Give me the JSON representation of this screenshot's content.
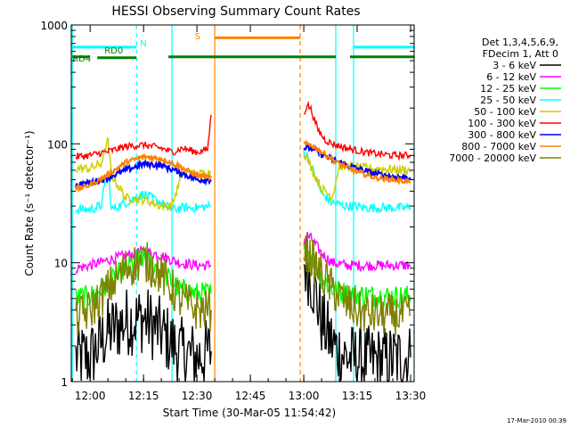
{
  "chart_data": {
    "type": "line",
    "title": "HESSI Observing Summary Count Rates",
    "xlabel": "Start Time (30-Mar-05 11:54:42)",
    "ylabel": "Count Rate (s⁻¹ detector⁻¹)",
    "y_scale": "log",
    "ylim": [
      1,
      1000
    ],
    "xlim": [
      "11:54:42",
      "13:31:00"
    ],
    "x_ticks": [
      "12:00",
      "12:15",
      "12:30",
      "12:45",
      "13:00",
      "13:15",
      "13:30"
    ],
    "y_ticks": [
      "1",
      "10",
      "100",
      "1000"
    ],
    "timestamp": "17-Mar-2010 00:39",
    "legend_header": [
      "Det 1,3,4,5,6,9,",
      "FDecim 1, Att 0"
    ],
    "legend_position": "right",
    "grid": false,
    "data_gaps": [
      [
        "12:35",
        "12:59"
      ]
    ],
    "annotations": [
      {
        "label": "N",
        "color": "#00ffff",
        "segments": [
          [
            "11:55",
            "12:13"
          ],
          [
            "13:14",
            "13:31"
          ]
        ],
        "value": 650
      },
      {
        "label": "RD0",
        "color": "#008000",
        "segments": [
          [
            "12:02",
            "12:13"
          ]
        ],
        "value": 530
      },
      {
        "label": "RD4",
        "color": "#008000",
        "segments": [
          [
            "11:55",
            "12:00"
          ],
          [
            "12:22",
            "12:59"
          ],
          [
            "12:59",
            "13:09"
          ],
          [
            "13:13",
            "13:31"
          ]
        ],
        "value": 540
      },
      {
        "label": "S",
        "color": "#ff8000",
        "segments": [
          [
            "12:35",
            "12:59"
          ]
        ],
        "value": 780
      }
    ],
    "vertical_markers": [
      {
        "time": "11:55",
        "color": "#00ffff",
        "style": "solid"
      },
      {
        "time": "12:13",
        "color": "#00ffff",
        "style": "dashed"
      },
      {
        "time": "12:23",
        "color": "#00ffff",
        "style": "solid"
      },
      {
        "time": "12:35",
        "color": "#ff8000",
        "style": "solid"
      },
      {
        "time": "12:59",
        "color": "#ff8000",
        "style": "dashed"
      },
      {
        "time": "13:09",
        "color": "#00ffff",
        "style": "solid"
      },
      {
        "time": "13:14",
        "color": "#00ffff",
        "style": "solid"
      },
      {
        "time": "13:31",
        "color": "#00ffff",
        "style": "dashed"
      }
    ],
    "series": [
      {
        "name": "3 - 6 keV",
        "color": "#000000",
        "points": [
          [
            "11:56",
            1.6
          ],
          [
            "12:00",
            1.6
          ],
          [
            "12:05",
            2.6
          ],
          [
            "12:10",
            3.2
          ],
          [
            "12:15",
            3.4
          ],
          [
            "12:20",
            2.6
          ],
          [
            "12:25",
            1.8
          ],
          [
            "12:30",
            1.6
          ],
          [
            "12:34",
            1.8
          ],
          null,
          [
            "13:00",
            10
          ],
          [
            "13:01",
            9
          ],
          [
            "13:03",
            6
          ],
          [
            "13:05",
            3.2
          ],
          [
            "13:07",
            2.4
          ],
          [
            "13:09",
            1.9
          ],
          [
            "13:12",
            1.6
          ],
          [
            "13:16",
            1.5
          ],
          [
            "13:22",
            1.5
          ],
          [
            "13:30",
            1.6
          ]
        ]
      },
      {
        "name": "6 - 12 keV",
        "color": "#ff00ff",
        "points": [
          [
            "11:56",
            9
          ],
          [
            "12:00",
            9.5
          ],
          [
            "12:05",
            10.5
          ],
          [
            "12:10",
            11.5
          ],
          [
            "12:15",
            12.5
          ],
          [
            "12:20",
            11.5
          ],
          [
            "12:25",
            10
          ],
          [
            "12:30",
            9.5
          ],
          [
            "12:34",
            9.5
          ],
          null,
          [
            "13:00",
            15
          ],
          [
            "13:01",
            17
          ],
          [
            "13:02",
            16
          ],
          [
            "13:05",
            12
          ],
          [
            "13:08",
            10
          ],
          [
            "13:12",
            9.5
          ],
          [
            "13:18",
            9.5
          ],
          [
            "13:25",
            9.5
          ],
          [
            "13:30",
            9.5
          ]
        ]
      },
      {
        "name": "12 - 25 keV",
        "color": "#00ff00",
        "points": [
          [
            "11:56",
            5
          ],
          [
            "12:00",
            5.2
          ],
          [
            "12:05",
            6.5
          ],
          [
            "12:10",
            9
          ],
          [
            "12:15",
            11
          ],
          [
            "12:20",
            8.5
          ],
          [
            "12:25",
            6
          ],
          [
            "12:30",
            5.5
          ],
          [
            "12:34",
            5.5
          ],
          null,
          [
            "13:00",
            12
          ],
          [
            "13:01",
            13
          ],
          [
            "13:03",
            10
          ],
          [
            "13:05",
            7.5
          ],
          [
            "13:08",
            6
          ],
          [
            "13:12",
            5.5
          ],
          [
            "13:18",
            5.3
          ],
          [
            "13:25",
            5.2
          ],
          [
            "13:30",
            5.2
          ]
        ]
      },
      {
        "name": "25 - 50 keV",
        "color": "#00ffff",
        "points": [
          [
            "11:56",
            28
          ],
          [
            "12:00",
            28
          ],
          [
            "12:03",
            30
          ],
          [
            "12:05",
            60
          ],
          [
            "12:06",
            28
          ],
          [
            "12:10",
            32
          ],
          [
            "12:15",
            38
          ],
          [
            "12:20",
            32
          ],
          [
            "12:23",
            28
          ],
          [
            "12:26",
            29
          ],
          [
            "12:30",
            29
          ],
          [
            "12:34",
            30
          ],
          null,
          [
            "13:00",
            85
          ],
          [
            "13:01",
            80
          ],
          [
            "13:03",
            55
          ],
          [
            "13:05",
            38
          ],
          [
            "13:08",
            32
          ],
          [
            "13:12",
            30
          ],
          [
            "13:18",
            29
          ],
          [
            "13:25",
            29
          ],
          [
            "13:30",
            29
          ]
        ]
      },
      {
        "name": "50 - 100 keV",
        "color": "#cccc00",
        "points": [
          [
            "11:56",
            62
          ],
          [
            "12:00",
            62
          ],
          [
            "12:03",
            68
          ],
          [
            "12:05",
            105
          ],
          [
            "12:06",
            55
          ],
          [
            "12:10",
            35
          ],
          [
            "12:15",
            34
          ],
          [
            "12:20",
            30
          ],
          [
            "12:23",
            30
          ],
          [
            "12:26",
            58
          ],
          [
            "12:30",
            55
          ],
          [
            "12:34",
            58
          ],
          null,
          [
            "13:00",
            85
          ],
          [
            "13:01",
            75
          ],
          [
            "13:03",
            55
          ],
          [
            "13:05",
            42
          ],
          [
            "13:08",
            36
          ],
          [
            "13:10",
            65
          ],
          [
            "13:12",
            65
          ],
          [
            "13:18",
            62
          ],
          [
            "13:25",
            61
          ],
          [
            "13:30",
            60
          ]
        ]
      },
      {
        "name": "100 - 300 keV",
        "color": "#ff0000",
        "points": [
          [
            "11:56",
            78
          ],
          [
            "12:00",
            80
          ],
          [
            "12:03",
            84
          ],
          [
            "12:05",
            86
          ],
          [
            "12:10",
            95
          ],
          [
            "12:15",
            98
          ],
          [
            "12:20",
            92
          ],
          [
            "12:23",
            85
          ],
          [
            "12:26",
            92
          ],
          [
            "12:30",
            85
          ],
          [
            "12:33",
            90
          ],
          [
            "12:34",
            175
          ],
          null,
          [
            "13:00",
            180
          ],
          [
            "13:01",
            215
          ],
          [
            "13:02",
            195
          ],
          [
            "13:04",
            130
          ],
          [
            "13:06",
            108
          ],
          [
            "13:08",
            100
          ],
          [
            "13:12",
            92
          ],
          [
            "13:18",
            84
          ],
          [
            "13:25",
            80
          ],
          [
            "13:30",
            80
          ]
        ]
      },
      {
        "name": "300 - 800 keV",
        "color": "#0000ff",
        "points": [
          [
            "11:56",
            45
          ],
          [
            "12:00",
            47
          ],
          [
            "12:05",
            52
          ],
          [
            "12:10",
            60
          ],
          [
            "12:15",
            68
          ],
          [
            "12:20",
            66
          ],
          [
            "12:25",
            58
          ],
          [
            "12:30",
            50
          ],
          [
            "12:34",
            50
          ],
          null,
          [
            "13:00",
            92
          ],
          [
            "13:02",
            92
          ],
          [
            "13:05",
            82
          ],
          [
            "13:10",
            70
          ],
          [
            "13:15",
            62
          ],
          [
            "13:20",
            56
          ],
          [
            "13:25",
            53
          ],
          [
            "13:30",
            52
          ]
        ]
      },
      {
        "name": "800 - 7000 keV",
        "color": "#ff8000",
        "points": [
          [
            "11:56",
            42
          ],
          [
            "12:00",
            45
          ],
          [
            "12:05",
            55
          ],
          [
            "12:10",
            70
          ],
          [
            "12:15",
            78
          ],
          [
            "12:20",
            75
          ],
          [
            "12:25",
            65
          ],
          [
            "12:30",
            54
          ],
          [
            "12:34",
            52
          ],
          null,
          [
            "13:00",
            100
          ],
          [
            "13:02",
            98
          ],
          [
            "13:05",
            85
          ],
          [
            "13:10",
            68
          ],
          [
            "13:15",
            58
          ],
          [
            "13:20",
            52
          ],
          [
            "13:25",
            50
          ],
          [
            "13:30",
            48
          ]
        ]
      },
      {
        "name": "7000 - 20000 keV",
        "color": "#808000",
        "points": [
          [
            "11:56",
            3.4
          ],
          [
            "12:00",
            4
          ],
          [
            "12:05",
            6
          ],
          [
            "12:10",
            9
          ],
          [
            "12:15",
            10.5
          ],
          [
            "12:20",
            8
          ],
          [
            "12:25",
            5
          ],
          [
            "12:30",
            4
          ],
          [
            "12:34",
            4
          ],
          null,
          [
            "13:00",
            13
          ],
          [
            "13:02",
            11
          ],
          [
            "13:05",
            8
          ],
          [
            "13:08",
            6
          ],
          [
            "13:12",
            4.5
          ],
          [
            "13:16",
            3.8
          ],
          [
            "13:22",
            3.6
          ],
          [
            "13:30",
            3.6
          ]
        ]
      }
    ]
  }
}
